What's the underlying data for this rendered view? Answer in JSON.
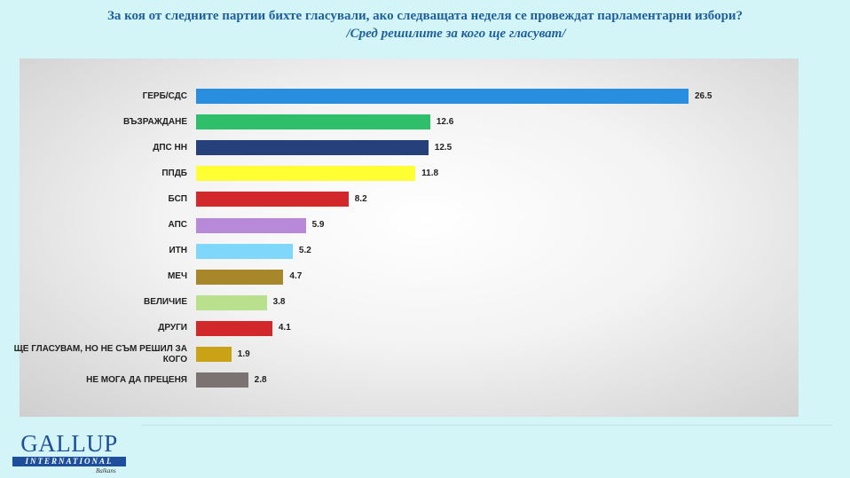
{
  "header": {
    "title": "За коя от следните партии бихте  гласували,  ако следващата неделя се провеждат парламентарни избори?",
    "subtitle": "/Сред решилите за кого ще гласуват/"
  },
  "chart_data": {
    "type": "bar",
    "orientation": "horizontal",
    "categories": [
      "ГЕРБ/СДС",
      "ВЪЗРАЖДАНЕ",
      "ДПС НН",
      "ППДБ",
      "БСП",
      "АПС",
      "ИТН",
      "МЕЧ",
      "ВЕЛИЧИЕ",
      "ДРУГИ",
      "ЩЕ ГЛАСУВАМ, НО НЕ СЪМ РЕШИЛ ЗА КОГО",
      "НЕ МОГА ДА ПРЕЦЕНЯ"
    ],
    "values": [
      26.5,
      12.6,
      12.5,
      11.8,
      8.2,
      5.9,
      5.2,
      4.7,
      3.8,
      4.1,
      1.9,
      2.8
    ],
    "value_labels": [
      "26.5",
      "12.6",
      "12.5",
      "11.8",
      "8.2",
      "5.9",
      "5.2",
      "4.7",
      "3.8",
      "4.1",
      "1.9",
      "2.8"
    ],
    "colors": [
      "#2a8ee0",
      "#2fbf6b",
      "#25407a",
      "#ffff33",
      "#d2282b",
      "#b889d8",
      "#7fd7fb",
      "#a8862a",
      "#b9e08c",
      "#d2282b",
      "#c9a216",
      "#7b7272"
    ],
    "xlim": [
      0,
      27
    ],
    "grid": false,
    "legend": "none"
  },
  "logo": {
    "main": "GALLUP",
    "band": "INTERNATIONAL",
    "sub": "Balkans"
  }
}
